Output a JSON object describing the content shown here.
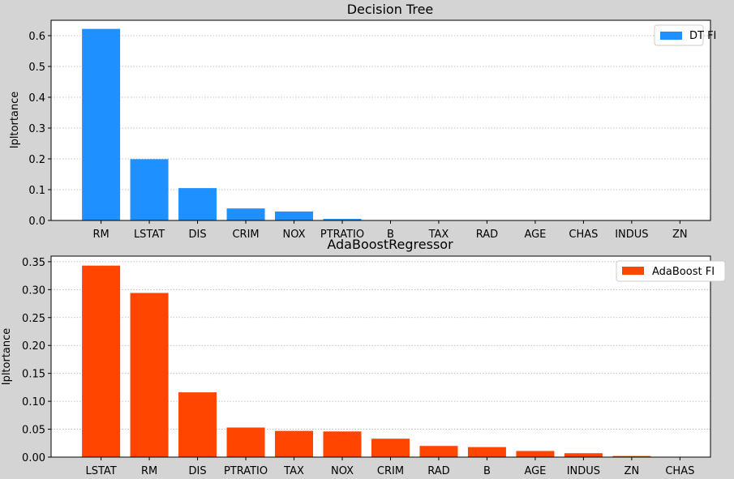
{
  "chart_data": [
    {
      "type": "bar",
      "title": "Decision Tree",
      "xlabel": "",
      "ylabel": "Ipltortance",
      "ylim": [
        0,
        0.65
      ],
      "yticks": [
        "0.0",
        "0.1",
        "0.2",
        "0.3",
        "0.4",
        "0.5",
        "0.6"
      ],
      "grid": "y-dotted",
      "legend_position": "top-right",
      "categories": [
        "RM",
        "LSTAT",
        "DIS",
        "CRIM",
        "NOX",
        "PTRATIO",
        "B",
        "TAX",
        "RAD",
        "AGE",
        "CHAS",
        "INDUS",
        "ZN"
      ],
      "series": [
        {
          "name": "DT FI",
          "color": "#1e90ff",
          "values": [
            0.622,
            0.199,
            0.105,
            0.039,
            0.029,
            0.005,
            0.0,
            0.0,
            0.0,
            0.0,
            0.0,
            0.0,
            0.0
          ]
        }
      ]
    },
    {
      "type": "bar",
      "title": "AdaBoostRegressor",
      "xlabel": "",
      "ylabel": "Ipltortance",
      "ylim": [
        0,
        0.36
      ],
      "yticks": [
        "0.00",
        "0.05",
        "0.10",
        "0.15",
        "0.20",
        "0.25",
        "0.30",
        "0.35"
      ],
      "grid": "y-dotted",
      "legend_position": "top-right",
      "categories": [
        "LSTAT",
        "RM",
        "DIS",
        "PTRATIO",
        "TAX",
        "NOX",
        "CRIM",
        "RAD",
        "B",
        "AGE",
        "INDUS",
        "ZN",
        "CHAS"
      ],
      "series": [
        {
          "name": "AdaBoost FI",
          "color": "#ff4500",
          "values": [
            0.343,
            0.294,
            0.116,
            0.053,
            0.047,
            0.046,
            0.033,
            0.02,
            0.018,
            0.011,
            0.007,
            0.002,
            0.0
          ]
        }
      ]
    }
  ]
}
